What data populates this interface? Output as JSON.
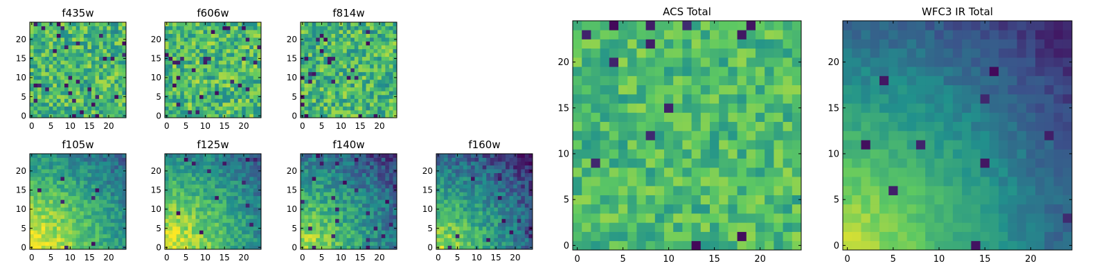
{
  "figure": {
    "colormap": "viridis",
    "colorscale": [
      "#440154",
      "#3b528b",
      "#21918c",
      "#5ec962",
      "#fde725"
    ],
    "frame_color": "#000000"
  },
  "chart_data": [
    {
      "type": "heatmap",
      "title": "f435w",
      "grid_size": 25,
      "xticks": [
        0,
        5,
        10,
        15,
        20
      ],
      "yticks": [
        0,
        5,
        10,
        15,
        20
      ],
      "xlim": [
        -0.5,
        24.5
      ],
      "ylim": [
        -0.5,
        24.5
      ],
      "pattern": "uniform-noise",
      "seed": 11,
      "mean": 0.66,
      "noise": 0.22,
      "dark_fraction": 0.045
    },
    {
      "type": "heatmap",
      "title": "f606w",
      "grid_size": 25,
      "xticks": [
        0,
        5,
        10,
        15,
        20
      ],
      "yticks": [
        0,
        5,
        10,
        15,
        20
      ],
      "xlim": [
        -0.5,
        24.5
      ],
      "ylim": [
        -0.5,
        24.5
      ],
      "pattern": "uniform-noise",
      "seed": 23,
      "mean": 0.68,
      "noise": 0.22,
      "dark_fraction": 0.04
    },
    {
      "type": "heatmap",
      "title": "f814w",
      "grid_size": 25,
      "xticks": [
        0,
        5,
        10,
        15,
        20
      ],
      "yticks": [
        0,
        5,
        10,
        15,
        20
      ],
      "xlim": [
        -0.5,
        24.5
      ],
      "ylim": [
        -0.5,
        24.5
      ],
      "pattern": "uniform-noise",
      "seed": 37,
      "mean": 0.66,
      "noise": 0.22,
      "dark_fraction": 0.045
    },
    {
      "type": "heatmap",
      "title": "f105w",
      "grid_size": 25,
      "xticks": [
        0,
        5,
        10,
        15,
        20
      ],
      "yticks": [
        0,
        5,
        10,
        15,
        20
      ],
      "xlim": [
        -0.5,
        24.5
      ],
      "ylim": [
        -0.5,
        24.5
      ],
      "pattern": "corner-gradient",
      "seed": 41,
      "mean": 0.62,
      "noise": 0.12,
      "gradient": 0.9,
      "dark_fraction": 0.015
    },
    {
      "type": "heatmap",
      "title": "f125w",
      "grid_size": 25,
      "xticks": [
        0,
        5,
        10,
        15,
        20
      ],
      "yticks": [
        0,
        5,
        10,
        15,
        20
      ],
      "xlim": [
        -0.5,
        24.5
      ],
      "ylim": [
        -0.5,
        24.5
      ],
      "pattern": "corner-gradient",
      "seed": 53,
      "mean": 0.6,
      "noise": 0.13,
      "gradient": 0.9,
      "dark_fraction": 0.02
    },
    {
      "type": "heatmap",
      "title": "f140w",
      "grid_size": 25,
      "xticks": [
        0,
        5,
        10,
        15,
        20
      ],
      "yticks": [
        0,
        5,
        10,
        15,
        20
      ],
      "xlim": [
        -0.5,
        24.5
      ],
      "ylim": [
        -0.5,
        24.5
      ],
      "pattern": "corner-gradient",
      "seed": 67,
      "mean": 0.5,
      "noise": 0.14,
      "gradient": 0.9,
      "dark_fraction": 0.03
    },
    {
      "type": "heatmap",
      "title": "f160w",
      "grid_size": 25,
      "xticks": [
        0,
        5,
        10,
        15,
        20
      ],
      "yticks": [
        0,
        5,
        10,
        15,
        20
      ],
      "xlim": [
        -0.5,
        24.5
      ],
      "ylim": [
        -0.5,
        24.5
      ],
      "pattern": "corner-gradient",
      "seed": 79,
      "mean": 0.45,
      "noise": 0.14,
      "gradient": 1.0,
      "dark_fraction": 0.035
    },
    {
      "type": "heatmap",
      "title": "ACS Total",
      "grid_size": 25,
      "xticks": [
        0,
        5,
        10,
        15,
        20
      ],
      "yticks": [
        0,
        5,
        10,
        15,
        20
      ],
      "xlim": [
        -0.5,
        24.5
      ],
      "ylim": [
        -0.5,
        24.5
      ],
      "pattern": "uniform-noise",
      "seed": 97,
      "mean": 0.68,
      "noise": 0.16,
      "dark_fraction": 0.03
    },
    {
      "type": "heatmap",
      "title": "WFC3 IR Total",
      "grid_size": 25,
      "xticks": [
        0,
        5,
        10,
        15,
        20
      ],
      "yticks": [
        0,
        5,
        10,
        15,
        20
      ],
      "xlim": [
        -0.5,
        24.5
      ],
      "ylim": [
        -0.5,
        24.5
      ],
      "pattern": "corner-gradient",
      "seed": 131,
      "mean": 0.46,
      "noise": 0.06,
      "gradient": 1.05,
      "dark_fraction": 0.02
    }
  ]
}
